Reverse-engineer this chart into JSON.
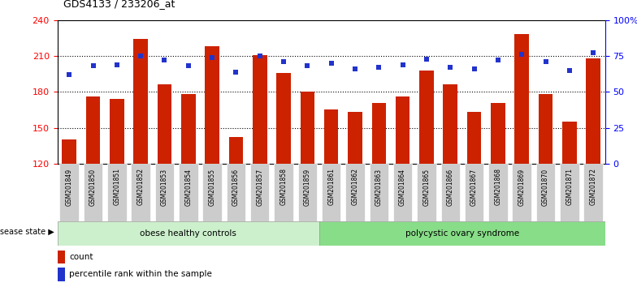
{
  "title": "GDS4133 / 233206_at",
  "samples": [
    "GSM201849",
    "GSM201850",
    "GSM201851",
    "GSM201852",
    "GSM201853",
    "GSM201854",
    "GSM201855",
    "GSM201856",
    "GSM201857",
    "GSM201858",
    "GSM201859",
    "GSM201861",
    "GSM201862",
    "GSM201863",
    "GSM201864",
    "GSM201865",
    "GSM201866",
    "GSM201867",
    "GSM201868",
    "GSM201869",
    "GSM201870",
    "GSM201871",
    "GSM201872"
  ],
  "counts": [
    140,
    176,
    174,
    224,
    186,
    178,
    218,
    142,
    211,
    196,
    180,
    165,
    163,
    171,
    176,
    198,
    186,
    163,
    171,
    228,
    178,
    155,
    208
  ],
  "percentiles": [
    62,
    68,
    69,
    75,
    72,
    68,
    74,
    64,
    75,
    71,
    68,
    70,
    66,
    67,
    69,
    73,
    67,
    66,
    72,
    76,
    71,
    65,
    77
  ],
  "group1_label": "obese healthy controls",
  "group2_label": "polycystic ovary syndrome",
  "group1_count": 11,
  "bar_color": "#cc2200",
  "dot_color": "#2233cc",
  "bg_color": "#ffffff",
  "ylim_left": [
    120,
    240
  ],
  "ylim_right": [
    0,
    100
  ],
  "yticks_left": [
    120,
    150,
    180,
    210,
    240
  ],
  "yticks_right": [
    0,
    25,
    50,
    75,
    100
  ],
  "yticklabels_right": [
    "0",
    "25",
    "50",
    "75",
    "100%"
  ],
  "legend_count_label": "count",
  "legend_pct_label": "percentile rank within the sample",
  "disease_label": "disease state",
  "group1_color": "#ccf0cc",
  "group2_color": "#88dd88",
  "tick_box_color": "#cccccc"
}
